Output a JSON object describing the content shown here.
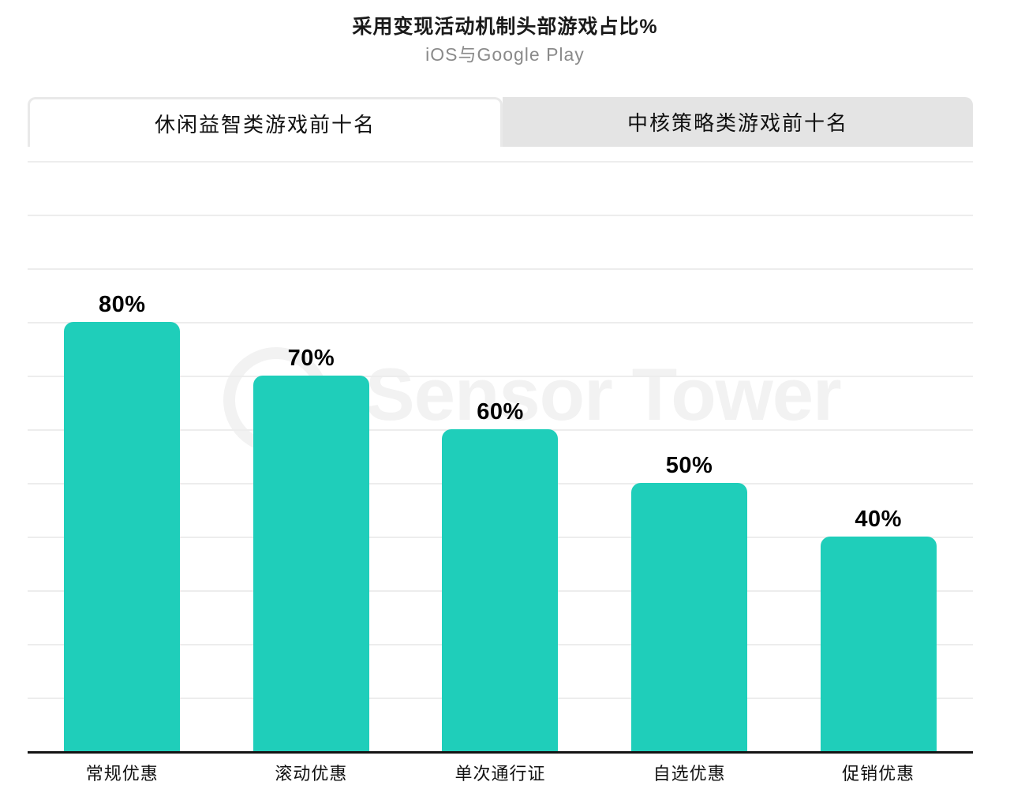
{
  "header": {
    "title": "采用变现活动机制头部游戏占比%",
    "subtitle": "iOS与Google Play"
  },
  "tabs": [
    {
      "label": "休闲益智类游戏前十名",
      "active": true
    },
    {
      "label": "中核策略类游戏前十名",
      "active": false
    }
  ],
  "watermark": "Sensor Tower",
  "chart_data": {
    "type": "bar",
    "title": "采用变现活动机制头部游戏占比%",
    "subtitle": "iOS与Google Play",
    "categories": [
      "常规优惠",
      "滚动优惠",
      "单次通行证",
      "自选优惠",
      "促销优惠"
    ],
    "values": [
      80,
      70,
      60,
      50,
      40
    ],
    "value_labels": [
      "80%",
      "70%",
      "60%",
      "50%",
      "40%"
    ],
    "xlabel": "",
    "ylabel": "",
    "ylim": [
      0,
      110
    ],
    "grid": true,
    "gridline_interval": 10,
    "legend": "none",
    "bar_color": "#1fceba",
    "gridline_color": "#ededed",
    "axis_color": "#141414"
  }
}
